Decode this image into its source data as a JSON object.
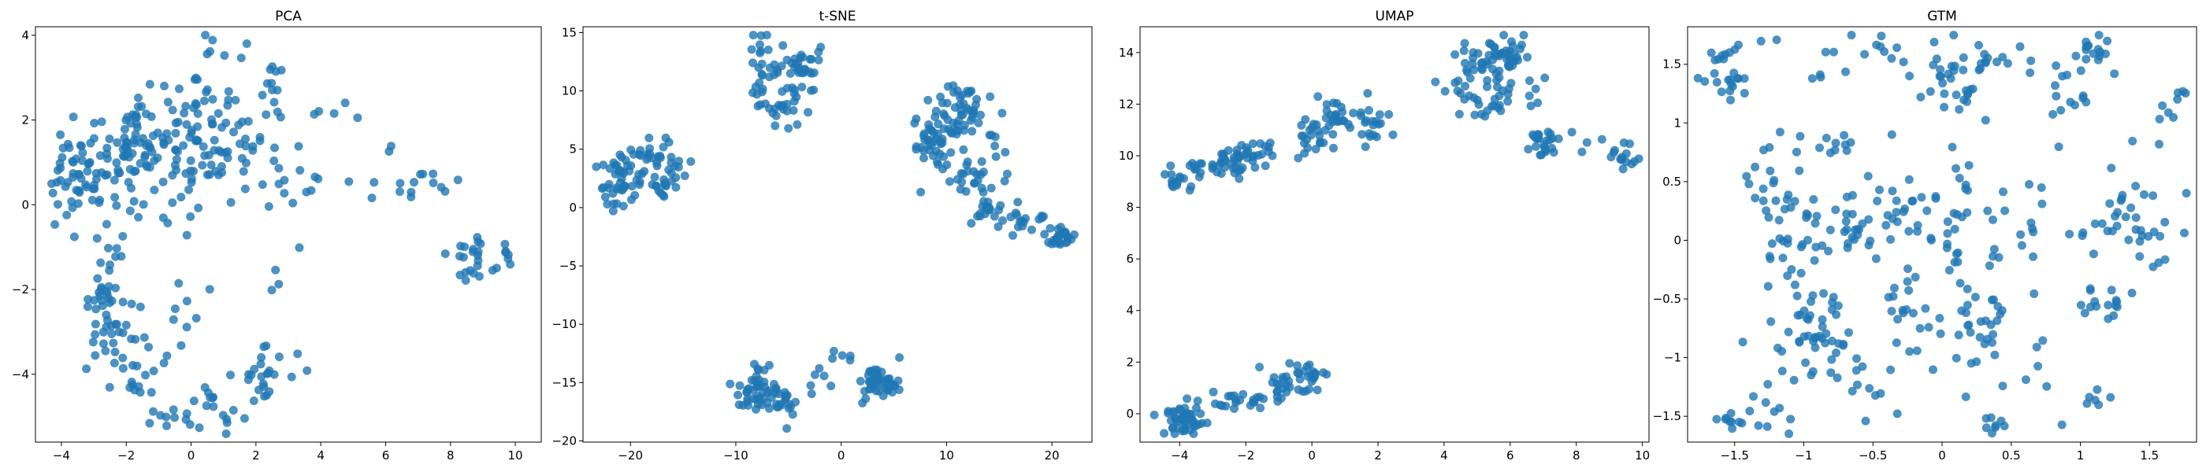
{
  "figure": {
    "background": "#ffffff",
    "point_color": "#1f77b4",
    "point_opacity": 0.8
  },
  "chart_data": [
    {
      "type": "scatter",
      "title": "PCA",
      "xlabel": "",
      "ylabel": "",
      "xlim": [
        -4.8,
        10.8
      ],
      "ylim": [
        -5.6,
        4.2
      ],
      "xticks": [
        -4,
        -2,
        0,
        2,
        4,
        6,
        8,
        10
      ],
      "yticks": [
        -4,
        -2,
        0,
        2,
        4
      ],
      "grid": false,
      "clusters": [
        {
          "cx": -3.8,
          "cy": 0.6,
          "sx": 0.35,
          "sy": 0.6,
          "n": 35
        },
        {
          "cx": -3.0,
          "cy": 0.9,
          "sx": 0.3,
          "sy": 0.6,
          "n": 25
        },
        {
          "cx": -1.9,
          "cy": 1.3,
          "sx": 0.5,
          "sy": 0.6,
          "n": 45
        },
        {
          "cx": -1.0,
          "cy": 1.2,
          "sx": 0.5,
          "sy": 0.6,
          "n": 40
        },
        {
          "cx": -0.6,
          "cy": 2.1,
          "sx": 0.7,
          "sy": 0.5,
          "n": 20
        },
        {
          "cx": 0.3,
          "cy": 1.3,
          "sx": 0.35,
          "sy": 1.1,
          "n": 45
        },
        {
          "cx": 1.5,
          "cy": 1.5,
          "sx": 0.6,
          "sy": 0.9,
          "n": 30
        },
        {
          "cx": 2.1,
          "cy": 2.7,
          "sx": 0.5,
          "sy": 0.4,
          "n": 12
        },
        {
          "cx": 3.0,
          "cy": 0.2,
          "sx": 0.5,
          "sy": 0.9,
          "n": 15
        },
        {
          "cx": 4.5,
          "cy": 1.4,
          "sx": 0.4,
          "sy": 0.6,
          "n": 8
        },
        {
          "cx": 6.2,
          "cy": 0.9,
          "sx": 0.4,
          "sy": 0.4,
          "n": 6
        },
        {
          "cx": 7.3,
          "cy": 0.5,
          "sx": 0.5,
          "sy": 0.3,
          "n": 10
        },
        {
          "cx": 8.8,
          "cy": -1.3,
          "sx": 0.6,
          "sy": 0.3,
          "n": 22
        },
        {
          "cx": 9.8,
          "cy": -1.0,
          "sx": 0.2,
          "sy": 0.2,
          "n": 6
        },
        {
          "cx": -2.6,
          "cy": -2.0,
          "sx": 0.4,
          "sy": 0.6,
          "n": 35
        },
        {
          "cx": -2.3,
          "cy": -3.2,
          "sx": 0.4,
          "sy": 0.5,
          "n": 20
        },
        {
          "cx": -1.8,
          "cy": -4.2,
          "sx": 0.3,
          "sy": 0.4,
          "n": 10
        },
        {
          "cx": -1.1,
          "cy": -4.9,
          "sx": 0.3,
          "sy": 0.3,
          "n": 6
        },
        {
          "cx": -1.0,
          "cy": -3.0,
          "sx": 0.4,
          "sy": 0.6,
          "n": 8
        },
        {
          "cx": 0.8,
          "cy": -4.8,
          "sx": 0.6,
          "sy": 0.4,
          "n": 20
        },
        {
          "cx": 2.3,
          "cy": -4.0,
          "sx": 0.5,
          "sy": 0.3,
          "n": 25
        },
        {
          "cx": 2.3,
          "cy": -1.8,
          "sx": 0.2,
          "sy": 0.15,
          "n": 3
        },
        {
          "cx": 0.0,
          "cy": -2.5,
          "sx": 0.4,
          "sy": 0.4,
          "n": 4
        }
      ]
    },
    {
      "type": "scatter",
      "title": "t-SNE",
      "xlabel": "",
      "ylabel": "",
      "xlim": [
        -24.5,
        23.8
      ],
      "ylim": [
        -20.1,
        15.5
      ],
      "xticks": [
        -20,
        -10,
        0,
        10,
        20
      ],
      "yticks": [
        -20,
        -15,
        -10,
        -5,
        0,
        5,
        10,
        15
      ],
      "grid": false,
      "clusters": [
        {
          "cx": -21.0,
          "cy": 2.5,
          "sx": 1.0,
          "sy": 1.2,
          "n": 45
        },
        {
          "cx": -16.5,
          "cy": 3.0,
          "sx": 1.0,
          "sy": 1.3,
          "n": 35
        },
        {
          "cx": -18.5,
          "cy": 4.5,
          "sx": 1.0,
          "sy": 0.4,
          "n": 12
        },
        {
          "cx": -7.5,
          "cy": 11.5,
          "sx": 0.8,
          "sy": 1.8,
          "n": 30
        },
        {
          "cx": -5.0,
          "cy": 9.5,
          "sx": 1.0,
          "sy": 1.5,
          "n": 25
        },
        {
          "cx": -3.5,
          "cy": 12.0,
          "sx": 0.8,
          "sy": 1.2,
          "n": 25
        },
        {
          "cx": -8.0,
          "cy": -15.5,
          "sx": 1.0,
          "sy": 1.0,
          "n": 40
        },
        {
          "cx": -6.0,
          "cy": -16.5,
          "sx": 1.0,
          "sy": 0.8,
          "n": 25
        },
        {
          "cx": -2.5,
          "cy": -14.8,
          "sx": 0.8,
          "sy": 0.6,
          "n": 6
        },
        {
          "cx": 3.5,
          "cy": -14.8,
          "sx": 1.0,
          "sy": 0.8,
          "n": 45
        },
        {
          "cx": 0.0,
          "cy": -12.5,
          "sx": 0.6,
          "sy": 0.4,
          "n": 5
        },
        {
          "cx": 9.0,
          "cy": 5.5,
          "sx": 1.2,
          "sy": 1.5,
          "n": 45
        },
        {
          "cx": 11.5,
          "cy": 8.5,
          "sx": 1.2,
          "sy": 1.2,
          "n": 45
        },
        {
          "cx": 12.5,
          "cy": 2.5,
          "sx": 1.5,
          "sy": 0.8,
          "n": 25
        },
        {
          "cx": 14.0,
          "cy": -0.5,
          "sx": 0.8,
          "sy": 0.4,
          "n": 15
        },
        {
          "cx": 17.5,
          "cy": -1.0,
          "sx": 1.5,
          "sy": 0.6,
          "n": 20
        },
        {
          "cx": 20.8,
          "cy": -2.5,
          "sx": 0.8,
          "sy": 0.5,
          "n": 25
        },
        {
          "cx": 15.0,
          "cy": 5.5,
          "sx": 0.6,
          "sy": 0.8,
          "n": 6
        }
      ]
    },
    {
      "type": "scatter",
      "title": "UMAP",
      "xlabel": "",
      "ylabel": "",
      "xlim": [
        -5.2,
        10.2
      ],
      "ylim": [
        -1.1,
        15.0
      ],
      "xticks": [
        -4,
        -2,
        0,
        2,
        4,
        6,
        8,
        10
      ],
      "yticks": [
        0,
        2,
        4,
        6,
        8,
        10,
        12,
        14
      ],
      "grid": false,
      "clusters": [
        {
          "cx": -4.1,
          "cy": 8.9,
          "sx": 0.25,
          "sy": 0.25,
          "n": 15
        },
        {
          "cx": -3.2,
          "cy": 9.6,
          "sx": 0.4,
          "sy": 0.2,
          "n": 15
        },
        {
          "cx": -2.2,
          "cy": 9.9,
          "sx": 0.4,
          "sy": 0.3,
          "n": 40
        },
        {
          "cx": -1.3,
          "cy": 10.3,
          "sx": 0.2,
          "sy": 0.15,
          "n": 6
        },
        {
          "cx": 0.2,
          "cy": 10.8,
          "sx": 0.4,
          "sy": 0.5,
          "n": 25
        },
        {
          "cx": 0.7,
          "cy": 11.6,
          "sx": 0.2,
          "sy": 0.3,
          "n": 15
        },
        {
          "cx": 1.6,
          "cy": 11.3,
          "sx": 0.4,
          "sy": 0.5,
          "n": 25
        },
        {
          "cx": 4.8,
          "cy": 13.2,
          "sx": 0.5,
          "sy": 0.5,
          "n": 25
        },
        {
          "cx": 5.6,
          "cy": 14.0,
          "sx": 0.5,
          "sy": 0.3,
          "n": 30
        },
        {
          "cx": 6.2,
          "cy": 13.0,
          "sx": 0.3,
          "sy": 0.8,
          "n": 20
        },
        {
          "cx": 5.5,
          "cy": 12.0,
          "sx": 0.6,
          "sy": 0.3,
          "n": 20
        },
        {
          "cx": 7.0,
          "cy": 10.4,
          "sx": 0.3,
          "sy": 0.3,
          "n": 20
        },
        {
          "cx": 8.2,
          "cy": 10.6,
          "sx": 0.7,
          "sy": 0.3,
          "n": 12
        },
        {
          "cx": 9.4,
          "cy": 9.8,
          "sx": 0.2,
          "sy": 0.3,
          "n": 10
        },
        {
          "cx": -3.8,
          "cy": -0.3,
          "sx": 0.35,
          "sy": 0.3,
          "n": 45
        },
        {
          "cx": -2.2,
          "cy": 0.5,
          "sx": 0.6,
          "sy": 0.3,
          "n": 25
        },
        {
          "cx": -0.6,
          "cy": 1.0,
          "sx": 0.5,
          "sy": 0.3,
          "n": 25
        },
        {
          "cx": -0.1,
          "cy": 1.6,
          "sx": 0.25,
          "sy": 0.2,
          "n": 15
        }
      ]
    },
    {
      "type": "scatter",
      "title": "GTM",
      "xlabel": "",
      "ylabel": "",
      "xlim": [
        -1.84,
        1.84
      ],
      "ylim": [
        -1.72,
        1.82
      ],
      "xticks": [
        -1.5,
        -1.0,
        -0.5,
        0.0,
        0.5,
        1.0,
        1.5
      ],
      "yticks": [
        -1.5,
        -1.0,
        -0.5,
        0.0,
        0.5,
        1.0,
        1.5
      ],
      "grid": false,
      "clusters": [
        {
          "cx": -1.55,
          "cy": 1.45,
          "sx": 0.08,
          "sy": 0.15,
          "n": 25
        },
        {
          "cx": -1.0,
          "cy": 1.5,
          "sx": 0.2,
          "sy": 0.15,
          "n": 8
        },
        {
          "cx": -0.3,
          "cy": 1.5,
          "sx": 0.25,
          "sy": 0.15,
          "n": 15
        },
        {
          "cx": 0.1,
          "cy": 1.4,
          "sx": 0.1,
          "sy": 0.25,
          "n": 30
        },
        {
          "cx": 0.6,
          "cy": 1.5,
          "sx": 0.15,
          "sy": 0.1,
          "n": 12
        },
        {
          "cx": 1.15,
          "cy": 1.6,
          "sx": 0.08,
          "sy": 0.1,
          "n": 15
        },
        {
          "cx": 0.9,
          "cy": 1.2,
          "sx": 0.1,
          "sy": 0.15,
          "n": 12
        },
        {
          "cx": 1.6,
          "cy": 1.2,
          "sx": 0.1,
          "sy": 0.15,
          "n": 8
        },
        {
          "cx": -1.3,
          "cy": 0.5,
          "sx": 0.1,
          "sy": 0.15,
          "n": 12
        },
        {
          "cx": -1.1,
          "cy": 0.0,
          "sx": 0.1,
          "sy": 0.4,
          "n": 35
        },
        {
          "cx": -0.6,
          "cy": 0.1,
          "sx": 0.2,
          "sy": 0.15,
          "n": 30
        },
        {
          "cx": -0.3,
          "cy": 0.3,
          "sx": 0.15,
          "sy": 0.15,
          "n": 20
        },
        {
          "cx": -0.9,
          "cy": 0.85,
          "sx": 0.2,
          "sy": 0.1,
          "n": 10
        },
        {
          "cx": 0.05,
          "cy": 0.1,
          "sx": 0.1,
          "sy": 0.3,
          "n": 20
        },
        {
          "cx": 0.35,
          "cy": -0.1,
          "sx": 0.1,
          "sy": 0.3,
          "n": 15
        },
        {
          "cx": 0.8,
          "cy": 0.2,
          "sx": 0.2,
          "sy": 0.15,
          "n": 15
        },
        {
          "cx": 1.3,
          "cy": 0.2,
          "sx": 0.1,
          "sy": 0.15,
          "n": 15
        },
        {
          "cx": 1.55,
          "cy": -0.1,
          "sx": 0.1,
          "sy": 0.2,
          "n": 10
        },
        {
          "cx": -0.9,
          "cy": -0.75,
          "sx": 0.1,
          "sy": 0.15,
          "n": 35
        },
        {
          "cx": -1.2,
          "cy": -1.1,
          "sx": 0.15,
          "sy": 0.25,
          "n": 15
        },
        {
          "cx": -0.5,
          "cy": -1.1,
          "sx": 0.2,
          "sy": 0.2,
          "n": 15
        },
        {
          "cx": -1.45,
          "cy": -1.55,
          "sx": 0.08,
          "sy": 0.05,
          "n": 12
        },
        {
          "cx": -0.3,
          "cy": -0.45,
          "sx": 0.1,
          "sy": 0.15,
          "n": 15
        },
        {
          "cx": 0.3,
          "cy": -0.8,
          "sx": 0.1,
          "sy": 0.2,
          "n": 25
        },
        {
          "cx": 0.0,
          "cy": -0.9,
          "sx": 0.1,
          "sy": 0.15,
          "n": 6
        },
        {
          "cx": 0.35,
          "cy": -1.55,
          "sx": 0.05,
          "sy": 0.05,
          "n": 8
        },
        {
          "cx": 1.15,
          "cy": -0.5,
          "sx": 0.1,
          "sy": 0.1,
          "n": 15
        },
        {
          "cx": 1.1,
          "cy": -1.35,
          "sx": 0.15,
          "sy": 0.05,
          "n": 6
        },
        {
          "cx": 0.7,
          "cy": -0.9,
          "sx": 0.2,
          "sy": 0.3,
          "n": 8
        },
        {
          "cx": 1.5,
          "cy": 0.5,
          "sx": 0.2,
          "sy": 0.3,
          "n": 8
        }
      ]
    }
  ]
}
